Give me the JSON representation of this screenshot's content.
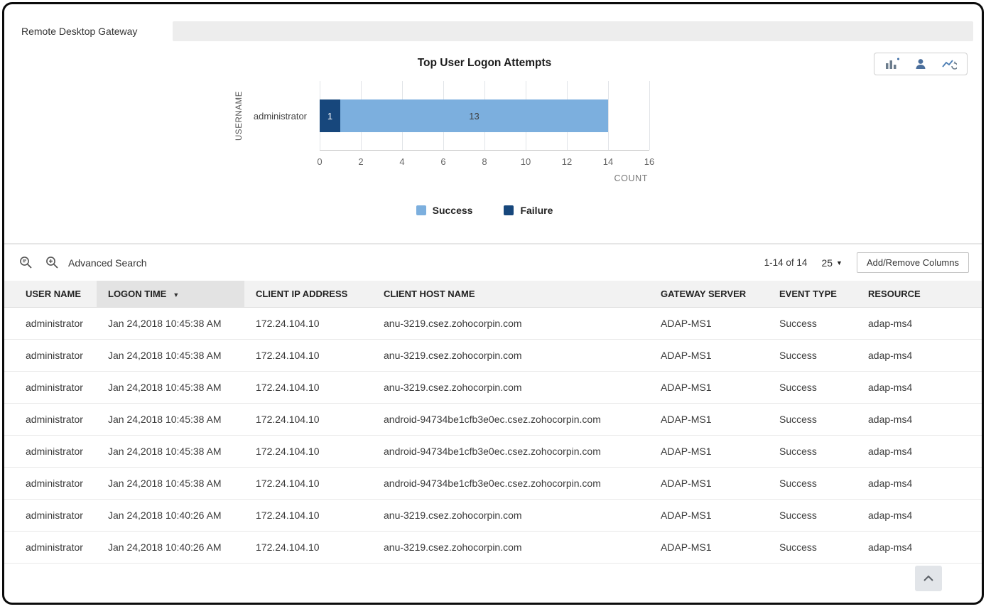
{
  "tab": {
    "label": "Remote Desktop Gateway"
  },
  "chart_data": {
    "type": "bar",
    "orientation": "horizontal",
    "stacked": true,
    "title": "Top User Logon Attempts",
    "xlabel": "COUNT",
    "ylabel": "USERNAME",
    "categories": [
      "administrator"
    ],
    "series": [
      {
        "name": "Failure",
        "values": [
          1
        ],
        "color": "#17477c",
        "label_color": "#ffffff"
      },
      {
        "name": "Success",
        "values": [
          13
        ],
        "color": "#7cafde",
        "label_color": "#3c3c3c"
      }
    ],
    "legend_order": [
      "Success",
      "Failure"
    ],
    "xlim": [
      0,
      16
    ],
    "tick_step": 2,
    "grid": true,
    "legend_position": "bottom"
  },
  "toolbar": {
    "advanced_search_label": "Advanced Search",
    "pagination": "1-14 of 14",
    "page_size": "25",
    "add_remove_columns_label": "Add/Remove Columns"
  },
  "table": {
    "columns": [
      {
        "label": "USER NAME"
      },
      {
        "label": "LOGON TIME",
        "sorted": "desc"
      },
      {
        "label": "CLIENT IP ADDRESS"
      },
      {
        "label": "CLIENT HOST NAME"
      },
      {
        "label": "GATEWAY SERVER"
      },
      {
        "label": "EVENT TYPE"
      },
      {
        "label": "RESOURCE"
      }
    ],
    "rows": [
      [
        "administrator",
        "Jan 24,2018 10:45:38 AM",
        "172.24.104.10",
        "anu-3219.csez.zohocorpin.com",
        "ADAP-MS1",
        "Success",
        "adap-ms4"
      ],
      [
        "administrator",
        "Jan 24,2018 10:45:38 AM",
        "172.24.104.10",
        "anu-3219.csez.zohocorpin.com",
        "ADAP-MS1",
        "Success",
        "adap-ms4"
      ],
      [
        "administrator",
        "Jan 24,2018 10:45:38 AM",
        "172.24.104.10",
        "anu-3219.csez.zohocorpin.com",
        "ADAP-MS1",
        "Success",
        "adap-ms4"
      ],
      [
        "administrator",
        "Jan 24,2018 10:45:38 AM",
        "172.24.104.10",
        "android-94734be1cfb3e0ec.csez.zohocorpin.com",
        "ADAP-MS1",
        "Success",
        "adap-ms4"
      ],
      [
        "administrator",
        "Jan 24,2018 10:45:38 AM",
        "172.24.104.10",
        "android-94734be1cfb3e0ec.csez.zohocorpin.com",
        "ADAP-MS1",
        "Success",
        "adap-ms4"
      ],
      [
        "administrator",
        "Jan 24,2018 10:45:38 AM",
        "172.24.104.10",
        "android-94734be1cfb3e0ec.csez.zohocorpin.com",
        "ADAP-MS1",
        "Success",
        "adap-ms4"
      ],
      [
        "administrator",
        "Jan 24,2018 10:40:26 AM",
        "172.24.104.10",
        "anu-3219.csez.zohocorpin.com",
        "ADAP-MS1",
        "Success",
        "adap-ms4"
      ],
      [
        "administrator",
        "Jan 24,2018 10:40:26 AM",
        "172.24.104.10",
        "anu-3219.csez.zohocorpin.com",
        "ADAP-MS1",
        "Success",
        "adap-ms4"
      ]
    ]
  },
  "icons": {
    "chart_toolbar": [
      "add-report-icon",
      "user-report-icon",
      "line-chart-refresh-icon"
    ],
    "search": [
      "search-icon",
      "advanced-search-icon"
    ]
  }
}
